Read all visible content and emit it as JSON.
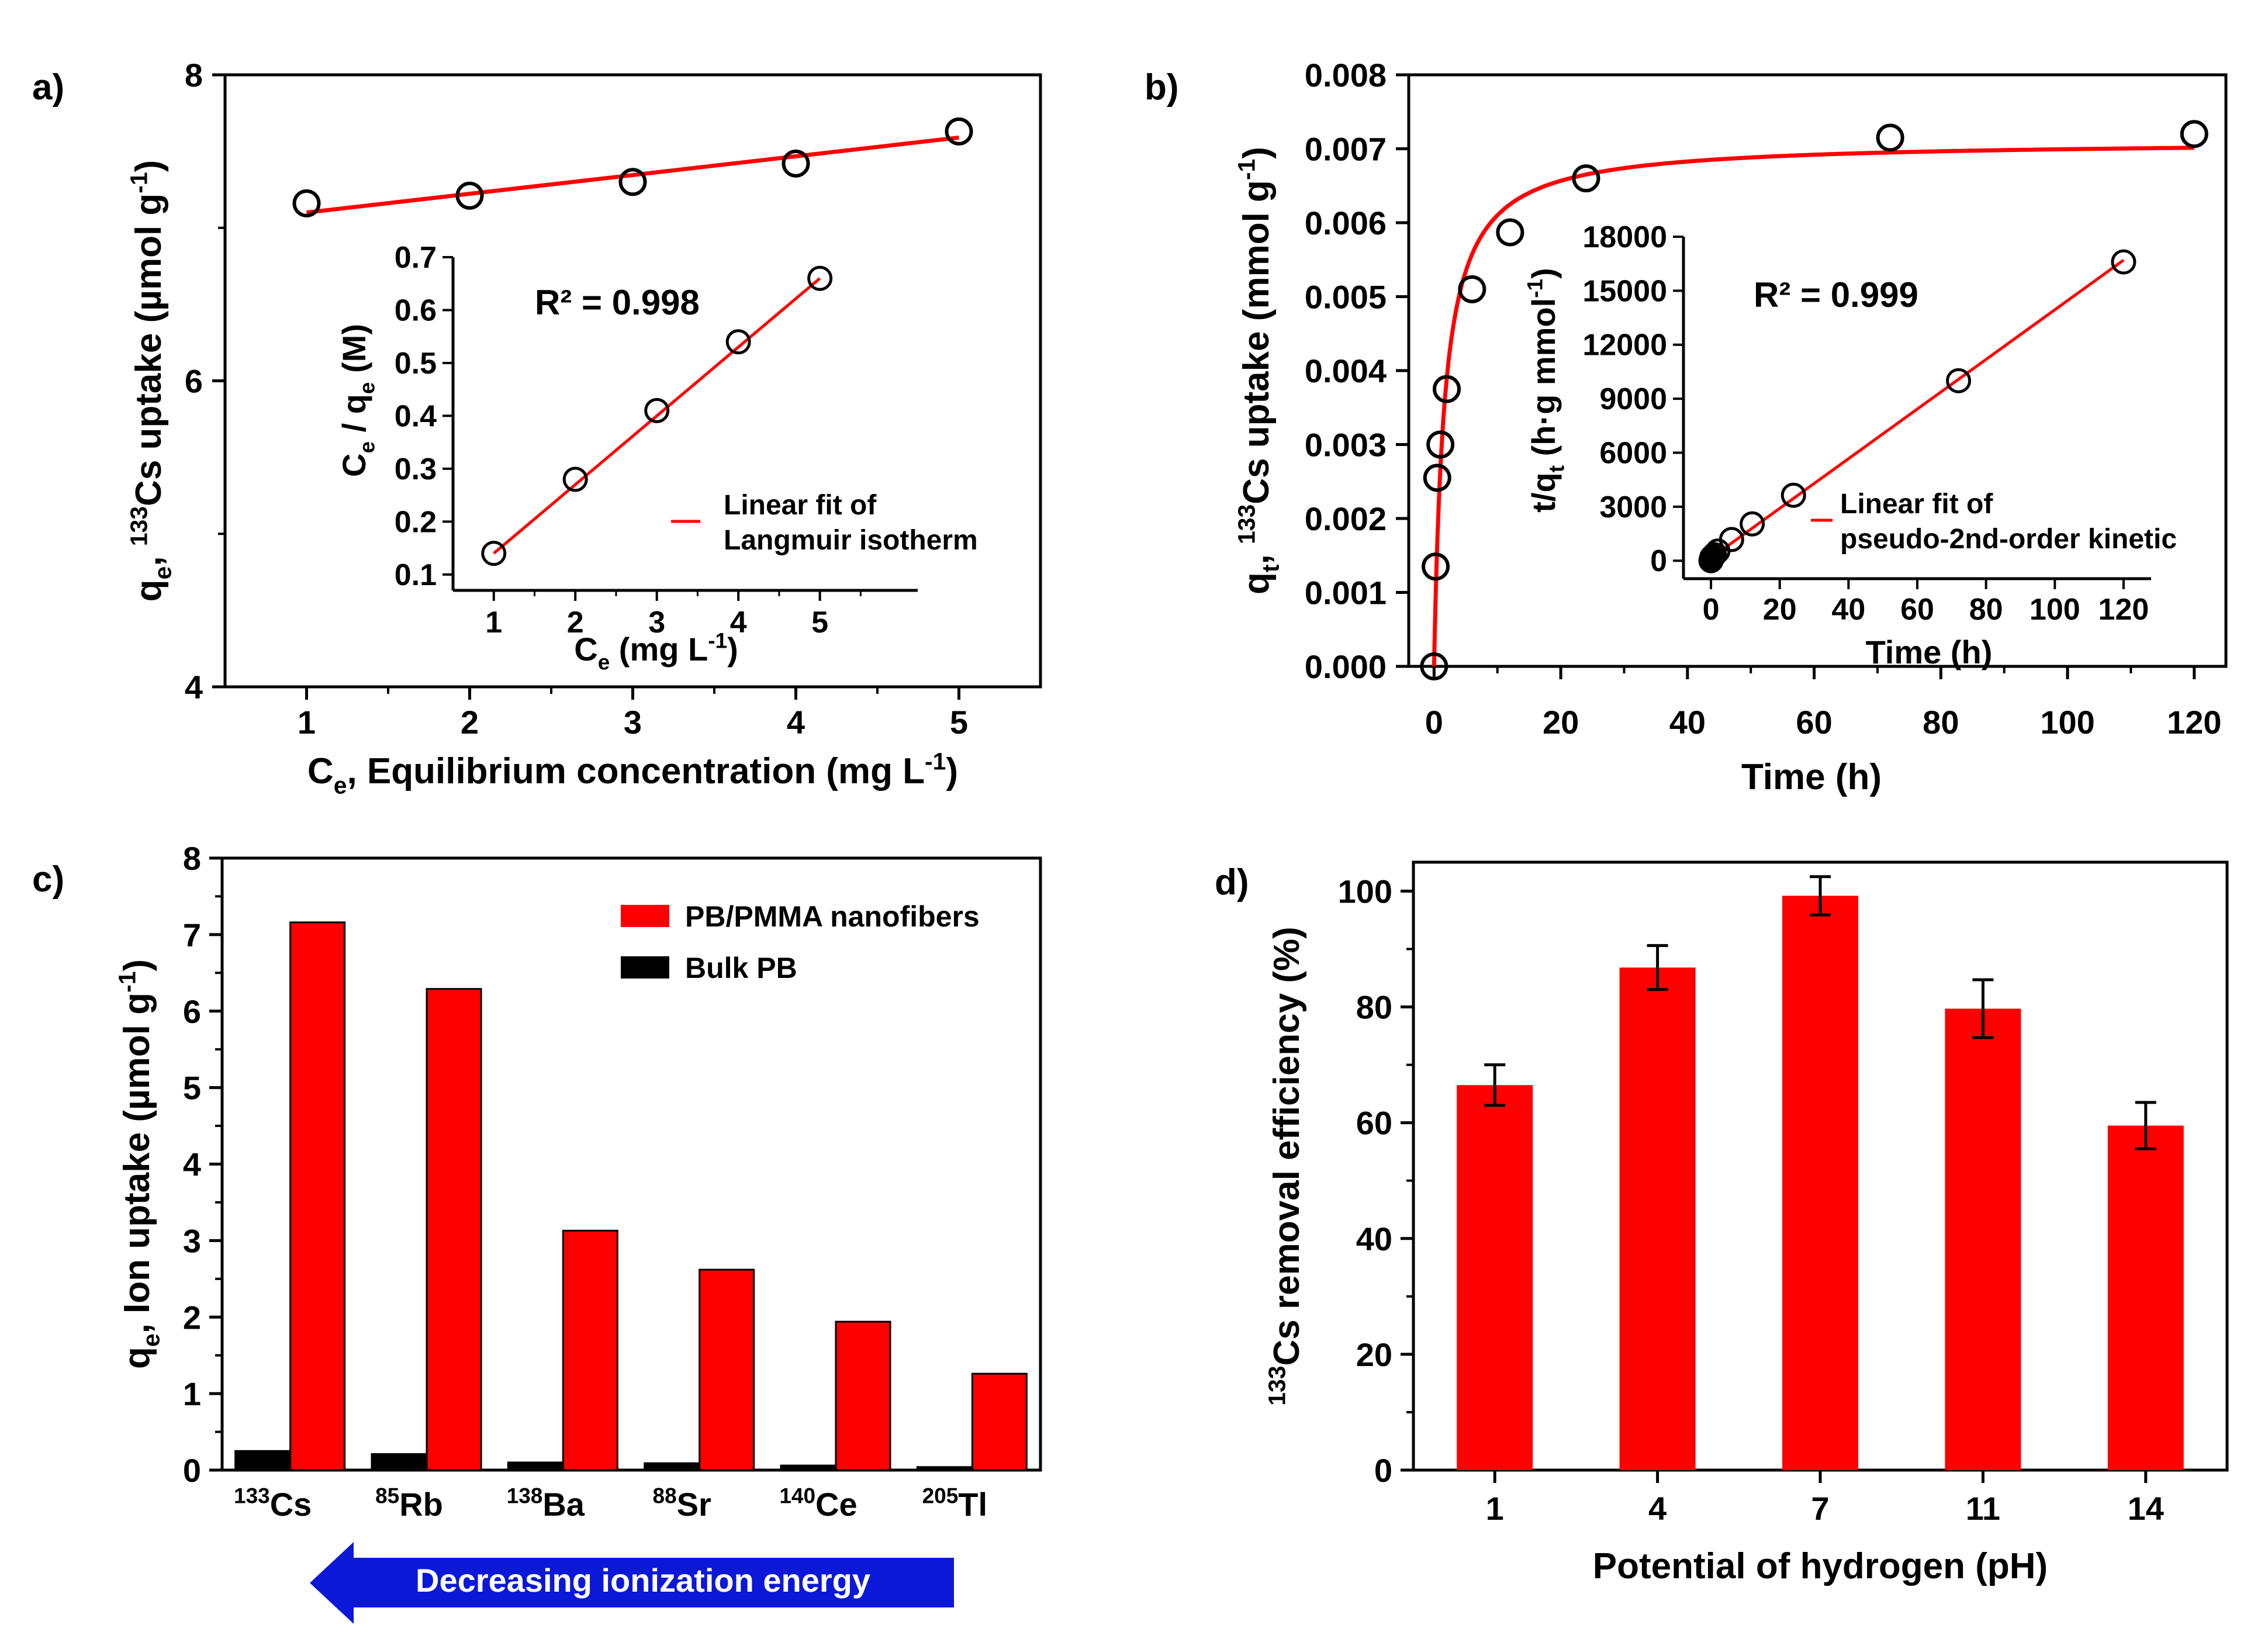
{
  "colors": {
    "red": "#ff0000",
    "black": "#000000",
    "arrow_blue": "#0b18d8"
  },
  "chart_data": [
    {
      "panel": "a)",
      "type": "scatter",
      "xlabel": "C<sub>e</sub>, Equilibrium concentration (mg L<sup>-1</sup>)",
      "ylabel": "q<sub>e</sub>, <sup>133</sup>Cs uptake (µmol g<sup>-1</sup>)",
      "xlim": [
        0.5,
        5.5
      ],
      "ylim": [
        4,
        8
      ],
      "xticks": [
        "1",
        "2",
        "3",
        "4",
        "5"
      ],
      "yticks": [
        "4",
        "6",
        "8"
      ],
      "points": {
        "x": [
          1,
          2,
          3,
          4,
          5
        ],
        "y": [
          7.16,
          7.21,
          7.3,
          7.42,
          7.63
        ]
      },
      "line": {
        "x": [
          1,
          5
        ],
        "y": [
          7.1,
          7.59
        ]
      },
      "inset": {
        "xlabel": "C<sub>e</sub> (mg L<sup>-1</sup>)",
        "ylabel": "C<sub>e</sub> / q<sub>e</sub> (M)",
        "xlim": [
          0.5,
          6.2
        ],
        "ylim": [
          0.07,
          0.7
        ],
        "xticks": [
          "1",
          "2",
          "3",
          "4",
          "5"
        ],
        "yticks": [
          "0.1",
          "0.2",
          "0.3",
          "0.4",
          "0.5",
          "0.6",
          "0.7"
        ],
        "points": {
          "x": [
            1,
            2,
            3,
            4,
            5
          ],
          "y": [
            0.14,
            0.28,
            0.41,
            0.54,
            0.66
          ]
        },
        "line": {
          "x": [
            1,
            5
          ],
          "y": [
            0.14,
            0.66
          ]
        },
        "r2": "R² = 0.998",
        "legend": [
          "Linear fit of",
          "Langmuir isotherm"
        ]
      }
    },
    {
      "panel": "b)",
      "type": "scatter",
      "xlabel": "Time (h)",
      "ylabel": "q<sub>t</sub>, <sup>133</sup>Cs uptake (mmol g<sup>-1</sup>)",
      "xlim": [
        -4,
        125
      ],
      "ylim": [
        0,
        0.008
      ],
      "xticks": [
        "0",
        "20",
        "40",
        "60",
        "80",
        "100",
        "120"
      ],
      "yticks": [
        "0.000",
        "0.001",
        "0.002",
        "0.003",
        "0.004",
        "0.005",
        "0.006",
        "0.007",
        "0.008"
      ],
      "points": {
        "x": [
          0,
          0.25,
          0.5,
          1,
          2,
          6,
          12,
          24,
          72,
          120
        ],
        "y": [
          0.0,
          0.00135,
          0.00255,
          0.003,
          0.00375,
          0.0051,
          0.00587,
          0.0066,
          0.00715,
          0.0072
        ]
      },
      "fit": {
        "qe": 0.00711,
        "k": 85
      },
      "inset": {
        "xlabel": "Time (h)",
        "ylabel": "t/q<sub>t</sub> (h·g mmol<sup>-1</sup>)",
        "xlim": [
          -8,
          128
        ],
        "ylim": [
          -1000,
          18000
        ],
        "xticks": [
          "0",
          "20",
          "40",
          "60",
          "80",
          "100",
          "120"
        ],
        "yticks": [
          "0",
          "3000",
          "6000",
          "9000",
          "12000",
          "15000",
          "18000"
        ],
        "points": {
          "x": [
            0,
            0.25,
            0.5,
            1,
            2,
            6,
            12,
            24,
            72,
            120
          ],
          "y": [
            0,
            185,
            196,
            333,
            533,
            1176,
            2044,
            3636,
            10000,
            16600
          ]
        },
        "line": {
          "x": [
            0,
            120
          ],
          "y": [
            150,
            16700
          ]
        },
        "r2": "R² = 0.999",
        "legend": [
          "Linear fit of",
          "pseudo-2nd-order kinetic"
        ]
      }
    },
    {
      "panel": "c)",
      "type": "bar",
      "ylabel": "q<sub>e</sub>, Ion uptake (µmol g<sup>-1</sup>)",
      "ylim": [
        0,
        8
      ],
      "yticks": [
        "0",
        "1",
        "2",
        "3",
        "4",
        "5",
        "6",
        "7",
        "8"
      ],
      "categories": [
        "<sup>133</sup>Cs",
        "<sup>85</sup>Rb",
        "<sup>138</sup>Ba",
        "<sup>88</sup>Sr",
        "<sup>140</sup>Ce",
        "<sup>205</sup>Tl"
      ],
      "series": [
        {
          "name": "PB/PMMA nanofibers",
          "color": "#ff0000",
          "values": [
            7.16,
            6.29,
            3.13,
            2.62,
            1.94,
            1.26
          ]
        },
        {
          "name": "Bulk PB",
          "color": "#000000",
          "values": [
            0.25,
            0.21,
            0.1,
            0.09,
            0.06,
            0.04
          ]
        }
      ],
      "arrow_label": "Decreasing ionization energy"
    },
    {
      "panel": "d)",
      "type": "bar",
      "xlabel": "Potential of hydrogen (pH)",
      "ylabel": "<sup>133</sup>Cs removal efficiency (%)",
      "ylim": [
        0,
        100
      ],
      "yticks": [
        "0",
        "20",
        "40",
        "60",
        "80",
        "100"
      ],
      "categories": [
        "1",
        "4",
        "7",
        "11",
        "14"
      ],
      "values": [
        66.5,
        86.8,
        99.2,
        79.7,
        59.5
      ],
      "errors": [
        3.5,
        3.8,
        3.3,
        5.0,
        4.0
      ]
    }
  ]
}
